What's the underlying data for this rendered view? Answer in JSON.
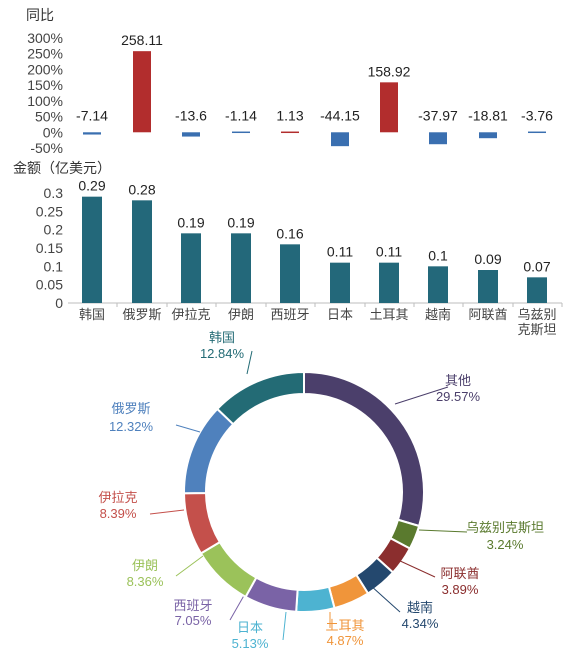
{
  "chart_data": [
    {
      "type": "bar",
      "title": "同比",
      "y_unit": "%",
      "categories": [
        "韩国",
        "俄罗斯",
        "伊拉克",
        "伊朗",
        "西班牙",
        "日本",
        "土耳其",
        "越南",
        "阿联酋",
        "乌兹别克斯坦"
      ],
      "values": [
        -7.14,
        258.11,
        -13.6,
        -1.14,
        1.13,
        -44.15,
        158.92,
        -37.97,
        -18.81,
        -3.76
      ],
      "value_labels": [
        "-7.14",
        "258.11",
        "-13.6",
        "-1.14",
        "1.13",
        "-44.15",
        "158.92",
        "-37.97",
        "-18.81",
        "-3.76"
      ],
      "yticks": [
        "300%",
        "250%",
        "200%",
        "150%",
        "100%",
        "50%",
        "0%",
        "-50%"
      ],
      "ylim": [
        -50,
        300
      ],
      "colors": {
        "positive": "#b22d2d",
        "negative": "#3a6fb0"
      }
    },
    {
      "type": "bar",
      "title": "金额（亿美元）",
      "categories": [
        "韩国",
        "俄罗斯",
        "伊拉克",
        "伊朗",
        "西班牙",
        "日本",
        "土耳其",
        "越南",
        "阿联酋",
        "乌兹别克斯坦"
      ],
      "category_labels": [
        [
          "韩国"
        ],
        [
          "俄罗斯"
        ],
        [
          "伊拉克"
        ],
        [
          "伊朗"
        ],
        [
          "西班牙"
        ],
        [
          "日本"
        ],
        [
          "土耳其"
        ],
        [
          "越南"
        ],
        [
          "阿联酋"
        ],
        [
          "乌兹别",
          "克斯坦"
        ]
      ],
      "values": [
        0.29,
        0.28,
        0.19,
        0.19,
        0.16,
        0.11,
        0.11,
        0.1,
        0.09,
        0.07
      ],
      "value_labels": [
        "0.29",
        "0.28",
        "0.19",
        "0.19",
        "0.16",
        "0.11",
        "0.11",
        "0.1",
        "0.09",
        "0.07"
      ],
      "yticks": [
        "0.3",
        "0.25",
        "0.2",
        "0.15",
        "0.1",
        "0.05",
        "0"
      ],
      "ylim": [
        0,
        0.3
      ],
      "colors": {
        "bar": "#23687a"
      }
    },
    {
      "type": "pie",
      "style": "donut",
      "slices": [
        {
          "name": "其他",
          "value": 29.57,
          "label": "29.57%",
          "color": "#4b3f6b"
        },
        {
          "name": "乌兹别克斯坦",
          "value": 3.24,
          "label": "3.24%",
          "color": "#5a7a2e"
        },
        {
          "name": "阿联酋",
          "value": 3.89,
          "label": "3.89%",
          "color": "#8b2e2e"
        },
        {
          "name": "越南",
          "value": 4.34,
          "label": "4.34%",
          "color": "#24486e"
        },
        {
          "name": "土耳其",
          "value": 4.87,
          "label": "4.87%",
          "color": "#f0953a"
        },
        {
          "name": "日本",
          "value": 5.13,
          "label": "5.13%",
          "color": "#4db3d1"
        },
        {
          "name": "西班牙",
          "value": 7.05,
          "label": "7.05%",
          "color": "#7a63a6"
        },
        {
          "name": "伊朗",
          "value": 8.36,
          "label": "8.36%",
          "color": "#9bc25a"
        },
        {
          "name": "伊拉克",
          "value": 8.39,
          "label": "8.39%",
          "color": "#c4504b"
        },
        {
          "name": "俄罗斯",
          "value": 12.32,
          "label": "12.32%",
          "color": "#4f81bd"
        },
        {
          "name": "韩国",
          "value": 12.84,
          "label": "12.84%",
          "color": "#236b75"
        }
      ]
    }
  ]
}
